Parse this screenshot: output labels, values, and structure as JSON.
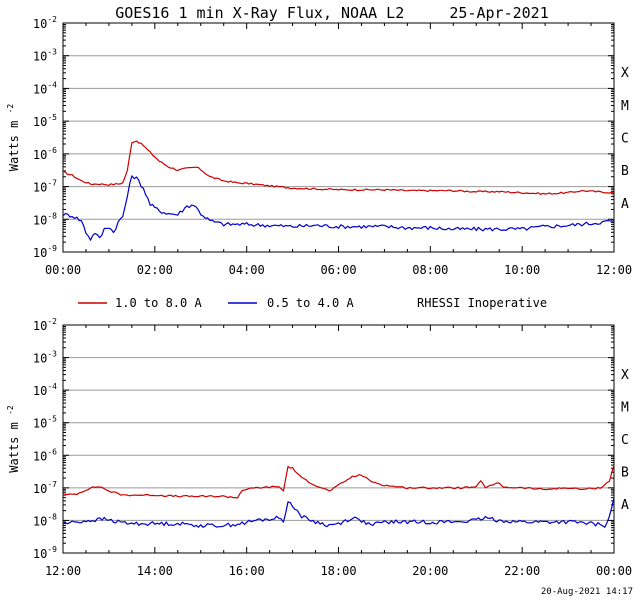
{
  "title": "GOES16 1 min X-Ray Flux, NOAA L2",
  "date": "25-Apr-2021",
  "footer_timestamp": "20-Aug-2021 14:17",
  "legend": {
    "items": [
      {
        "label": "1.0 to 8.0 A",
        "color": "#cc0000"
      },
      {
        "label": "0.5 to 4.0 A",
        "color": "#0000cc"
      }
    ],
    "note": "RHESSI Inoperative"
  },
  "chart_data": [
    {
      "type": "line",
      "title": "GOES16 1 min X-Ray Flux, NOAA L2",
      "ylabel": "Watts m",
      "ylabel_sup": "-2",
      "yscale": "log",
      "ylim": [
        1e-09,
        0.01
      ],
      "grid": true,
      "ytick_labels": [
        {
          "base": "10",
          "exp": "-9"
        },
        {
          "base": "10",
          "exp": "-8"
        },
        {
          "base": "10",
          "exp": "-7"
        },
        {
          "base": "10",
          "exp": "-6"
        },
        {
          "base": "10",
          "exp": "-5"
        },
        {
          "base": "10",
          "exp": "-4"
        },
        {
          "base": "10",
          "exp": "-3"
        },
        {
          "base": "10",
          "exp": "-2"
        }
      ],
      "flare_classes": [
        "A",
        "B",
        "C",
        "M",
        "X"
      ],
      "xlim": [
        "00:00",
        "12:00"
      ],
      "xtick_labels": [
        "00:00",
        "02:00",
        "04:00",
        "06:00",
        "08:00",
        "10:00",
        "12:00"
      ],
      "series": [
        {
          "name": "1.0 to 8.0 A",
          "color": "#cc0000",
          "x": [
            0,
            0.2,
            0.4,
            0.6,
            0.8,
            1.0,
            1.2,
            1.3,
            1.4,
            1.5,
            1.6,
            1.75,
            1.9,
            2.1,
            2.3,
            2.5,
            2.7,
            2.9,
            3.0,
            3.2,
            3.5,
            3.8,
            4.0,
            4.5,
            5.0,
            5.5,
            6.0,
            6.5,
            7.0,
            7.5,
            8.0,
            8.5,
            9.0,
            9.5,
            10.0,
            10.5,
            11.0,
            11.3,
            11.6,
            12.0
          ],
          "y": [
            2.8e-07,
            2.2e-07,
            1.5e-07,
            1.2e-07,
            1.2e-07,
            1.15e-07,
            1.2e-07,
            1.3e-07,
            3e-07,
            2.3e-06,
            2.5e-06,
            1.8e-06,
            1.1e-06,
            6e-07,
            4e-07,
            3.2e-07,
            3.6e-07,
            3.9e-07,
            3.3e-07,
            2e-07,
            1.5e-07,
            1.3e-07,
            1.25e-07,
            1.05e-07,
            9e-08,
            8.5e-08,
            8e-08,
            8e-08,
            8e-08,
            7.5e-08,
            7.5e-08,
            7.5e-08,
            7e-08,
            7e-08,
            6.5e-08,
            6e-08,
            6.5e-08,
            7.5e-08,
            7e-08,
            6.5e-08
          ]
        },
        {
          "name": "0.5 to 4.0 A",
          "color": "#0000cc",
          "x": [
            0,
            0.2,
            0.4,
            0.5,
            0.6,
            0.7,
            0.8,
            0.9,
            1.0,
            1.1,
            1.2,
            1.3,
            1.4,
            1.5,
            1.6,
            1.75,
            1.9,
            2.1,
            2.3,
            2.5,
            2.7,
            2.85,
            3.0,
            3.2,
            3.5,
            4.0,
            4.5,
            5.0,
            5.5,
            6.0,
            6.5,
            7.0,
            7.5,
            8.0,
            8.5,
            9.0,
            9.5,
            10.0,
            10.5,
            11.0,
            11.5,
            12.0
          ],
          "y": [
            1.4e-08,
            1.3e-08,
            9e-09,
            4e-09,
            2.5e-09,
            4e-09,
            2.5e-09,
            5e-09,
            6e-09,
            4e-09,
            8e-09,
            1.2e-08,
            5e-08,
            2.2e-07,
            1.8e-07,
            9e-08,
            2.8e-08,
            1.8e-08,
            1.5e-08,
            1.4e-08,
            2.5e-08,
            2.8e-08,
            1.5e-08,
            9e-09,
            7e-09,
            7e-09,
            6.5e-09,
            6e-09,
            6.5e-09,
            6e-09,
            6e-09,
            6e-09,
            5.5e-09,
            5.5e-09,
            5e-09,
            5e-09,
            5e-09,
            5e-09,
            6e-09,
            6.5e-09,
            7.5e-09,
            9e-09
          ]
        }
      ]
    },
    {
      "type": "line",
      "ylabel": "Watts m",
      "ylabel_sup": "-2",
      "yscale": "log",
      "ylim": [
        1e-09,
        0.01
      ],
      "grid": true,
      "ytick_labels": [
        {
          "base": "10",
          "exp": "-9"
        },
        {
          "base": "10",
          "exp": "-8"
        },
        {
          "base": "10",
          "exp": "-7"
        },
        {
          "base": "10",
          "exp": "-6"
        },
        {
          "base": "10",
          "exp": "-5"
        },
        {
          "base": "10",
          "exp": "-4"
        },
        {
          "base": "10",
          "exp": "-3"
        },
        {
          "base": "10",
          "exp": "-2"
        }
      ],
      "flare_classes": [
        "A",
        "B",
        "C",
        "M",
        "X"
      ],
      "xlim": [
        "12:00",
        "00:00"
      ],
      "xtick_labels": [
        "12:00",
        "14:00",
        "16:00",
        "18:00",
        "20:00",
        "22:00",
        "00:00"
      ],
      "series": [
        {
          "name": "1.0 to 8.0 A",
          "color": "#cc0000",
          "x": [
            12.0,
            12.3,
            12.6,
            12.8,
            13.0,
            13.3,
            13.6,
            14.0,
            14.5,
            15.0,
            15.5,
            15.8,
            15.9,
            16.2,
            16.5,
            16.7,
            16.8,
            16.9,
            17.0,
            17.2,
            17.5,
            17.8,
            18.0,
            18.3,
            18.5,
            18.7,
            19.0,
            19.5,
            20.0,
            20.5,
            21.0,
            21.1,
            21.2,
            21.5,
            21.6,
            22.0,
            22.5,
            23.0,
            23.3,
            23.7,
            23.9,
            24.0
          ],
          "y": [
            6e-08,
            6.5e-08,
            1e-07,
            1.1e-07,
            8e-08,
            6e-08,
            6e-08,
            6e-08,
            5.5e-08,
            5.5e-08,
            5.5e-08,
            5e-08,
            8.5e-08,
            1e-07,
            1.05e-07,
            1.1e-07,
            8e-08,
            4.5e-07,
            4e-07,
            2e-07,
            1.2e-07,
            8e-08,
            1.2e-07,
            2.2e-07,
            2.5e-07,
            1.6e-07,
            1.2e-07,
            1e-07,
            1e-07,
            1e-07,
            1.05e-07,
            1.6e-07,
            1.05e-07,
            1.4e-07,
            1.05e-07,
            1e-07,
            9e-08,
            1e-07,
            9e-08,
            1e-07,
            1.6e-07,
            5e-07
          ]
        },
        {
          "name": "0.5 to 4.0 A",
          "color": "#0000cc",
          "x": [
            12.0,
            12.3,
            12.6,
            12.9,
            13.2,
            13.5,
            14.0,
            14.5,
            15.0,
            15.5,
            15.9,
            16.2,
            16.5,
            16.7,
            16.8,
            16.9,
            17.0,
            17.2,
            17.5,
            17.8,
            18.0,
            18.3,
            18.5,
            18.7,
            19.0,
            19.5,
            20.0,
            20.5,
            21.0,
            21.2,
            21.5,
            22.0,
            22.5,
            23.0,
            23.5,
            23.8,
            23.9,
            24.0
          ],
          "y": [
            8e-09,
            9e-09,
            1e-08,
            1.1e-08,
            9e-09,
            8e-09,
            8e-09,
            8e-09,
            7e-09,
            7e-09,
            8e-09,
            1e-08,
            1.1e-08,
            1.2e-08,
            1e-08,
            3.5e-08,
            3e-08,
            1.3e-08,
            9e-09,
            7e-09,
            8e-09,
            1.2e-08,
            1e-08,
            7e-09,
            9e-09,
            9e-09,
            9e-09,
            9e-09,
            1e-08,
            1.2e-08,
            1e-08,
            9e-09,
            9e-09,
            9e-09,
            8e-09,
            7e-09,
            1.2e-08,
            5e-08
          ]
        }
      ]
    }
  ]
}
